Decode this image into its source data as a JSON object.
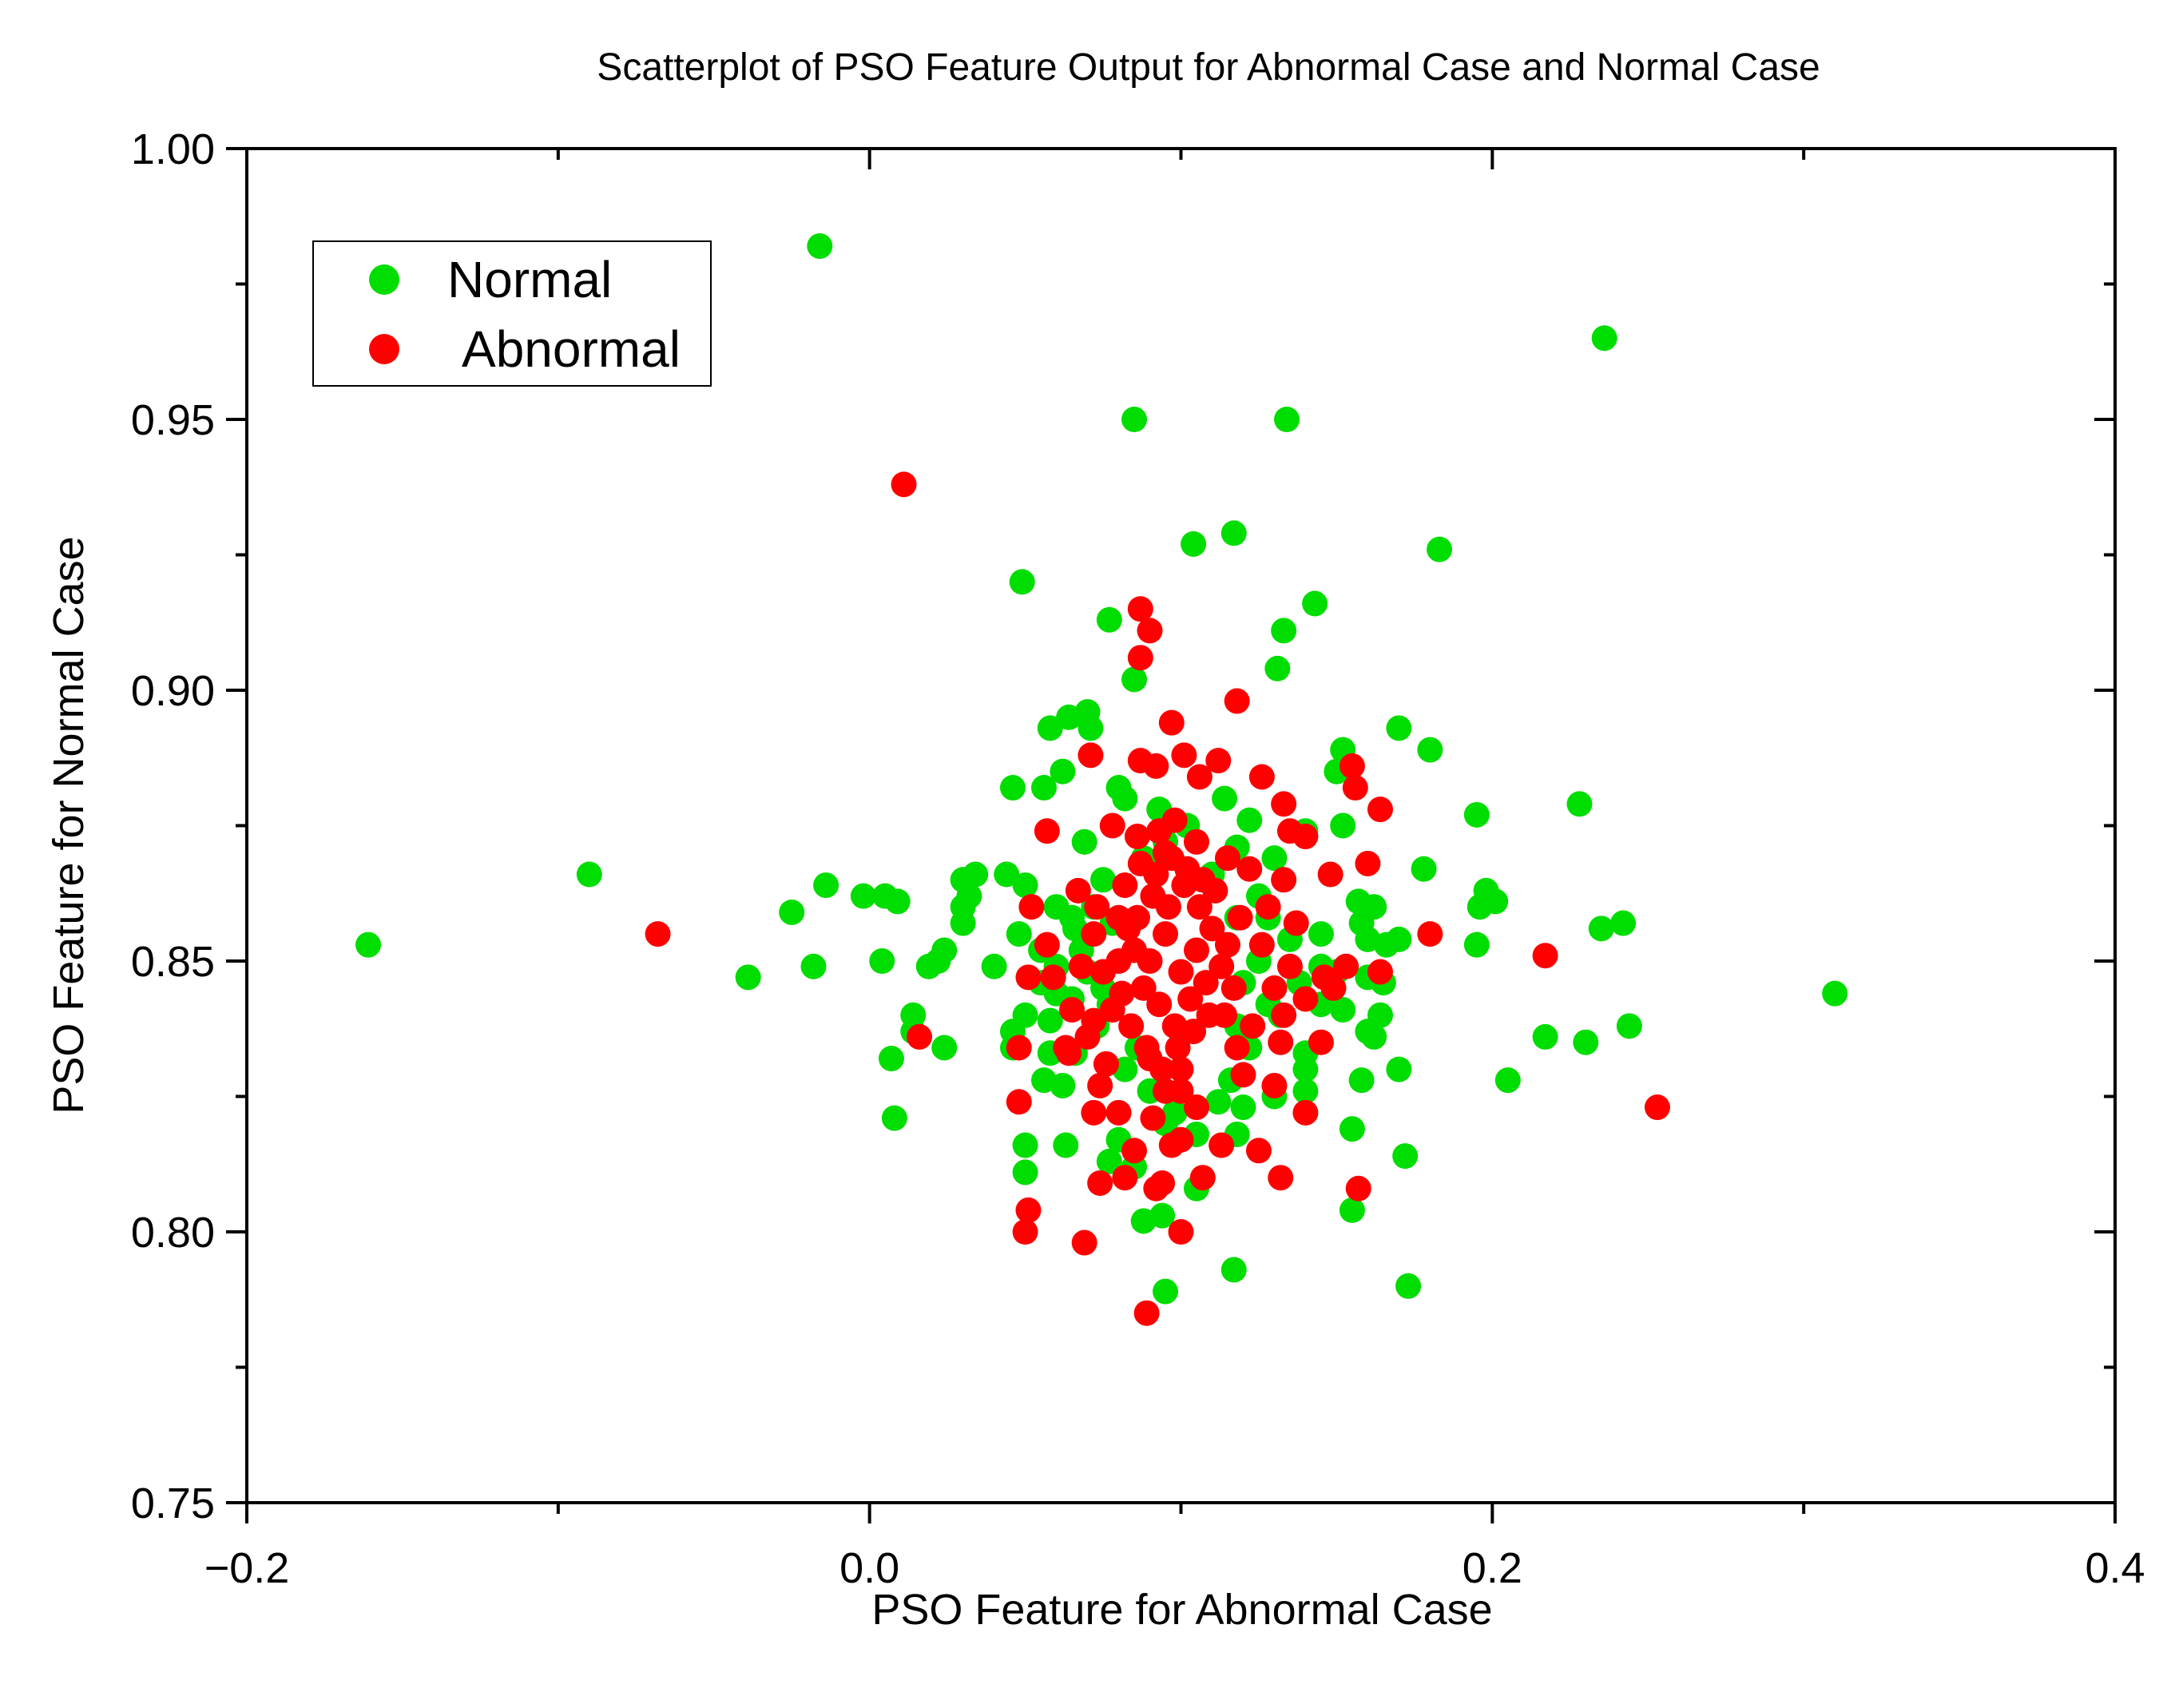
{
  "colors": {
    "normal": "#00dd00",
    "abnormal": "#ff0000",
    "axis": "#000000",
    "background": "#ffffff"
  },
  "chart_data": {
    "type": "scatter",
    "title": "Scatterplot of PSO Feature Output for Abnormal Case and Normal Case",
    "xlabel": "PSO Feature for Abnormal Case",
    "ylabel": "PSO Feature for Normal Case",
    "xlim": [
      -0.2,
      0.4
    ],
    "ylim": [
      0.75,
      1.0
    ],
    "xticks": [
      -0.2,
      0.0,
      0.2,
      0.4
    ],
    "xtick_labels": [
      "−0.2",
      "0.0",
      "0.2",
      "0.4"
    ],
    "yticks": [
      0.75,
      0.8,
      0.85,
      0.9,
      0.95,
      1.0
    ],
    "ytick_labels": [
      "0.75",
      "0.80",
      "0.85",
      "0.90",
      "0.95",
      "1.00"
    ],
    "grid": false,
    "legend_position": "top-left",
    "series": [
      {
        "name": "Normal",
        "color": "#00dd00",
        "points": [
          [
            -0.016,
            0.982
          ],
          [
            0.236,
            0.965
          ],
          [
            0.085,
            0.95
          ],
          [
            0.134,
            0.95
          ],
          [
            0.117,
            0.929
          ],
          [
            0.104,
            0.927
          ],
          [
            0.183,
            0.926
          ],
          [
            0.049,
            0.92
          ],
          [
            0.143,
            0.916
          ],
          [
            0.077,
            0.913
          ],
          [
            0.133,
            0.911
          ],
          [
            0.131,
            0.904
          ],
          [
            0.085,
            0.902
          ],
          [
            0.058,
            0.893
          ],
          [
            0.17,
            0.893
          ],
          [
            0.064,
            0.895
          ],
          [
            0.07,
            0.896
          ],
          [
            0.071,
            0.893
          ],
          [
            0.152,
            0.889
          ],
          [
            0.15,
            0.885
          ],
          [
            0.18,
            0.889
          ],
          [
            0.062,
            0.885
          ],
          [
            0.056,
            0.882
          ],
          [
            0.046,
            0.882
          ],
          [
            0.08,
            0.882
          ],
          [
            0.082,
            0.88
          ],
          [
            0.093,
            0.878
          ],
          [
            0.114,
            0.88
          ],
          [
            0.228,
            0.879
          ],
          [
            0.195,
            0.877
          ],
          [
            0.152,
            0.875
          ],
          [
            0.14,
            0.874
          ],
          [
            0.122,
            0.876
          ],
          [
            0.069,
            0.872
          ],
          [
            0.044,
            0.866
          ],
          [
            0.03,
            0.865
          ],
          [
            0.034,
            0.866
          ],
          [
            0.05,
            0.864
          ],
          [
            0.178,
            0.867
          ],
          [
            0.13,
            0.869
          ],
          [
            0.118,
            0.871
          ],
          [
            0.075,
            0.865
          ],
          [
            -0.09,
            0.866
          ],
          [
            -0.014,
            0.864
          ],
          [
            -0.002,
            0.862
          ],
          [
            0.005,
            0.862
          ],
          [
            0.009,
            0.861
          ],
          [
            0.032,
            0.862
          ],
          [
            0.03,
            0.86
          ],
          [
            0.198,
            0.863
          ],
          [
            0.201,
            0.861
          ],
          [
            0.196,
            0.86
          ],
          [
            0.157,
            0.861
          ],
          [
            0.162,
            0.86
          ],
          [
            0.06,
            0.86
          ],
          [
            0.065,
            0.858
          ],
          [
            0.078,
            0.857
          ],
          [
            -0.025,
            0.859
          ],
          [
            0.03,
            0.857
          ],
          [
            0.235,
            0.856
          ],
          [
            0.242,
            0.857
          ],
          [
            0.158,
            0.857
          ],
          [
            0.16,
            0.854
          ],
          [
            0.17,
            0.854
          ],
          [
            0.166,
            0.853
          ],
          [
            0.195,
            0.853
          ],
          [
            0.145,
            0.855
          ],
          [
            0.048,
            0.855
          ],
          [
            0.055,
            0.852
          ],
          [
            -0.161,
            0.853
          ],
          [
            0.024,
            0.852
          ],
          [
            0.022,
            0.85
          ],
          [
            -0.018,
            0.849
          ],
          [
            0.004,
            0.85
          ],
          [
            0.019,
            0.849
          ],
          [
            0.04,
            0.849
          ],
          [
            0.145,
            0.849
          ],
          [
            0.15,
            0.848
          ],
          [
            0.16,
            0.847
          ],
          [
            0.165,
            0.846
          ],
          [
            -0.039,
            0.847
          ],
          [
            0.055,
            0.846
          ],
          [
            0.06,
            0.844
          ],
          [
            0.31,
            0.844
          ],
          [
            0.145,
            0.842
          ],
          [
            0.152,
            0.841
          ],
          [
            0.05,
            0.84
          ],
          [
            0.058,
            0.839
          ],
          [
            0.014,
            0.84
          ],
          [
            0.014,
            0.837
          ],
          [
            0.164,
            0.84
          ],
          [
            0.046,
            0.837
          ],
          [
            0.16,
            0.837
          ],
          [
            0.162,
            0.836
          ],
          [
            0.217,
            0.836
          ],
          [
            0.23,
            0.835
          ],
          [
            0.244,
            0.838
          ],
          [
            0.046,
            0.834
          ],
          [
            0.024,
            0.834
          ],
          [
            0.058,
            0.833
          ],
          [
            0.066,
            0.833
          ],
          [
            0.14,
            0.833
          ],
          [
            0.007,
            0.832
          ],
          [
            0.14,
            0.83
          ],
          [
            0.17,
            0.83
          ],
          [
            0.158,
            0.828
          ],
          [
            0.205,
            0.828
          ],
          [
            0.056,
            0.828
          ],
          [
            0.062,
            0.827
          ],
          [
            0.14,
            0.826
          ],
          [
            0.13,
            0.825
          ],
          [
            0.12,
            0.823
          ],
          [
            0.008,
            0.821
          ],
          [
            0.155,
            0.819
          ],
          [
            0.095,
            0.82
          ],
          [
            0.105,
            0.818
          ],
          [
            0.05,
            0.816
          ],
          [
            0.063,
            0.816
          ],
          [
            0.08,
            0.817
          ],
          [
            0.118,
            0.818
          ],
          [
            0.172,
            0.814
          ],
          [
            0.077,
            0.813
          ],
          [
            0.085,
            0.812
          ],
          [
            0.05,
            0.811
          ],
          [
            0.107,
            0.81
          ],
          [
            0.105,
            0.808
          ],
          [
            0.155,
            0.804
          ],
          [
            0.094,
            0.803
          ],
          [
            0.088,
            0.802
          ],
          [
            0.117,
            0.793
          ],
          [
            0.173,
            0.79
          ],
          [
            0.095,
            0.789
          ],
          [
            0.07,
            0.848
          ],
          [
            0.075,
            0.845
          ],
          [
            0.068,
            0.852
          ],
          [
            0.073,
            0.838
          ],
          [
            0.077,
            0.842
          ],
          [
            0.12,
            0.846
          ],
          [
            0.125,
            0.85
          ],
          [
            0.128,
            0.842
          ],
          [
            0.118,
            0.838
          ],
          [
            0.122,
            0.834
          ],
          [
            0.066,
            0.856
          ],
          [
            0.072,
            0.86
          ],
          [
            0.118,
            0.858
          ],
          [
            0.125,
            0.862
          ],
          [
            0.11,
            0.866
          ],
          [
            0.088,
            0.869
          ],
          [
            0.095,
            0.872
          ],
          [
            0.102,
            0.875
          ],
          [
            0.082,
            0.83
          ],
          [
            0.09,
            0.826
          ],
          [
            0.098,
            0.822
          ],
          [
            0.112,
            0.824
          ],
          [
            0.116,
            0.828
          ],
          [
            0.086,
            0.834
          ],
          [
            0.06,
            0.849
          ],
          [
            0.065,
            0.843
          ],
          [
            0.135,
            0.854
          ],
          [
            0.138,
            0.846
          ],
          [
            0.132,
            0.84
          ],
          [
            0.128,
            0.858
          ]
        ]
      },
      {
        "name": "Abnormal",
        "color": "#ff0000",
        "points": [
          [
            0.011,
            0.938
          ],
          [
            0.087,
            0.915
          ],
          [
            0.09,
            0.911
          ],
          [
            0.087,
            0.906
          ],
          [
            0.118,
            0.898
          ],
          [
            0.097,
            0.894
          ],
          [
            0.071,
            0.888
          ],
          [
            0.087,
            0.887
          ],
          [
            0.092,
            0.886
          ],
          [
            0.101,
            0.888
          ],
          [
            0.112,
            0.887
          ],
          [
            0.106,
            0.884
          ],
          [
            0.155,
            0.886
          ],
          [
            0.156,
            0.882
          ],
          [
            0.126,
            0.884
          ],
          [
            0.133,
            0.879
          ],
          [
            0.164,
            0.878
          ],
          [
            0.135,
            0.874
          ],
          [
            0.14,
            0.873
          ],
          [
            0.057,
            0.874
          ],
          [
            0.078,
            0.875
          ],
          [
            0.086,
            0.873
          ],
          [
            0.095,
            0.87
          ],
          [
            0.105,
            0.872
          ],
          [
            0.115,
            0.869
          ],
          [
            0.16,
            0.868
          ],
          [
            0.148,
            0.866
          ],
          [
            0.122,
            0.867
          ],
          [
            0.133,
            0.865
          ],
          [
            0.067,
            0.863
          ],
          [
            0.052,
            0.86
          ],
          [
            0.073,
            0.86
          ],
          [
            0.08,
            0.858
          ],
          [
            0.128,
            0.86
          ],
          [
            0.137,
            0.857
          ],
          [
            -0.068,
            0.855
          ],
          [
            0.18,
            0.855
          ],
          [
            0.072,
            0.855
          ],
          [
            0.057,
            0.853
          ],
          [
            0.126,
            0.853
          ],
          [
            0.217,
            0.851
          ],
          [
            0.135,
            0.849
          ],
          [
            0.146,
            0.847
          ],
          [
            0.153,
            0.849
          ],
          [
            0.164,
            0.848
          ],
          [
            0.051,
            0.847
          ],
          [
            0.059,
            0.847
          ],
          [
            0.068,
            0.849
          ],
          [
            0.075,
            0.848
          ],
          [
            0.13,
            0.845
          ],
          [
            0.14,
            0.843
          ],
          [
            0.149,
            0.845
          ],
          [
            0.065,
            0.841
          ],
          [
            0.072,
            0.839
          ],
          [
            0.133,
            0.84
          ],
          [
            0.123,
            0.838
          ],
          [
            0.07,
            0.836
          ],
          [
            0.016,
            0.836
          ],
          [
            0.063,
            0.834
          ],
          [
            0.118,
            0.834
          ],
          [
            0.132,
            0.835
          ],
          [
            0.145,
            0.835
          ],
          [
            0.048,
            0.834
          ],
          [
            0.064,
            0.833
          ],
          [
            0.09,
            0.832
          ],
          [
            0.076,
            0.831
          ],
          [
            0.12,
            0.829
          ],
          [
            0.074,
            0.827
          ],
          [
            0.1,
            0.826
          ],
          [
            0.13,
            0.827
          ],
          [
            0.048,
            0.824
          ],
          [
            0.072,
            0.822
          ],
          [
            0.08,
            0.822
          ],
          [
            0.105,
            0.823
          ],
          [
            0.253,
            0.823
          ],
          [
            0.14,
            0.822
          ],
          [
            0.091,
            0.821
          ],
          [
            0.1,
            0.817
          ],
          [
            0.113,
            0.816
          ],
          [
            0.125,
            0.815
          ],
          [
            0.097,
            0.816
          ],
          [
            0.085,
            0.815
          ],
          [
            0.132,
            0.81
          ],
          [
            0.107,
            0.81
          ],
          [
            0.082,
            0.81
          ],
          [
            0.074,
            0.809
          ],
          [
            0.094,
            0.809
          ],
          [
            0.157,
            0.808
          ],
          [
            0.092,
            0.808
          ],
          [
            0.051,
            0.804
          ],
          [
            0.05,
            0.8
          ],
          [
            0.1,
            0.8
          ],
          [
            0.069,
            0.798
          ],
          [
            0.089,
            0.785
          ],
          [
            0.085,
            0.852
          ],
          [
            0.09,
            0.85
          ],
          [
            0.095,
            0.855
          ],
          [
            0.1,
            0.848
          ],
          [
            0.105,
            0.852
          ],
          [
            0.11,
            0.856
          ],
          [
            0.088,
            0.845
          ],
          [
            0.093,
            0.842
          ],
          [
            0.098,
            0.838
          ],
          [
            0.103,
            0.843
          ],
          [
            0.108,
            0.846
          ],
          [
            0.113,
            0.849
          ],
          [
            0.086,
            0.858
          ],
          [
            0.091,
            0.862
          ],
          [
            0.096,
            0.86
          ],
          [
            0.101,
            0.864
          ],
          [
            0.106,
            0.86
          ],
          [
            0.111,
            0.863
          ],
          [
            0.084,
            0.838
          ],
          [
            0.089,
            0.834
          ],
          [
            0.094,
            0.83
          ],
          [
            0.099,
            0.834
          ],
          [
            0.104,
            0.837
          ],
          [
            0.109,
            0.84
          ],
          [
            0.082,
            0.864
          ],
          [
            0.087,
            0.868
          ],
          [
            0.092,
            0.866
          ],
          [
            0.097,
            0.869
          ],
          [
            0.102,
            0.867
          ],
          [
            0.107,
            0.865
          ],
          [
            0.115,
            0.853
          ],
          [
            0.117,
            0.845
          ],
          [
            0.114,
            0.84
          ],
          [
            0.08,
            0.85
          ],
          [
            0.081,
            0.844
          ],
          [
            0.083,
            0.856
          ],
          [
            0.095,
            0.826
          ],
          [
            0.1,
            0.83
          ],
          [
            0.093,
            0.874
          ],
          [
            0.098,
            0.876
          ],
          [
            0.119,
            0.858
          ],
          [
            0.078,
            0.841
          ]
        ]
      }
    ]
  }
}
